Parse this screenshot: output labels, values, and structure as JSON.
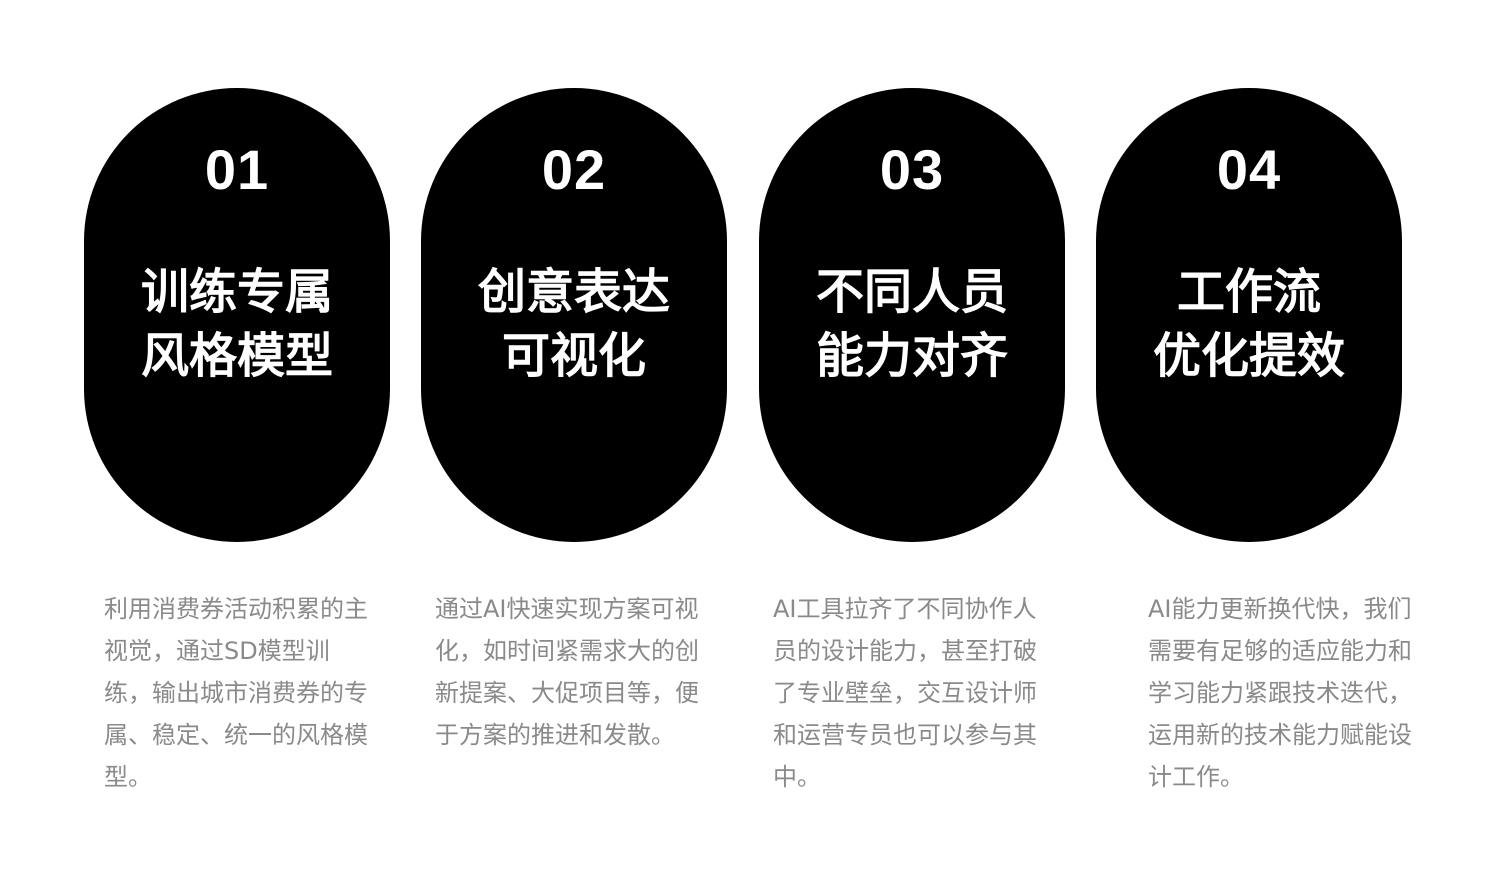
{
  "cards": [
    {
      "number": "01",
      "title_line1": "训练专属",
      "title_line2": "风格模型",
      "description": "利用消费券活动积累的主视觉，通过SD模型训练，输出城市消费券的专属、稳定、统一的风格模型。"
    },
    {
      "number": "02",
      "title_line1": "创意表达",
      "title_line2": "可视化",
      "description": "通过AI快速实现方案可视化，如时间紧需求大的创新提案、大促项目等，便于方案的推进和发散。"
    },
    {
      "number": "03",
      "title_line1": "不同人员",
      "title_line2": "能力对齐",
      "description": "AI工具拉齐了不同协作人员的设计能力，甚至打破了专业壁垒，交互设计师和运营专员也可以参与其中。"
    },
    {
      "number": "04",
      "title_line1": "工作流",
      "title_line2": "优化提效",
      "description": "AI能力更新换代快，我们需要有足够的适应能力和学习能力紧跟技术迭代，运用新的技术能力赋能设计工作。"
    }
  ]
}
